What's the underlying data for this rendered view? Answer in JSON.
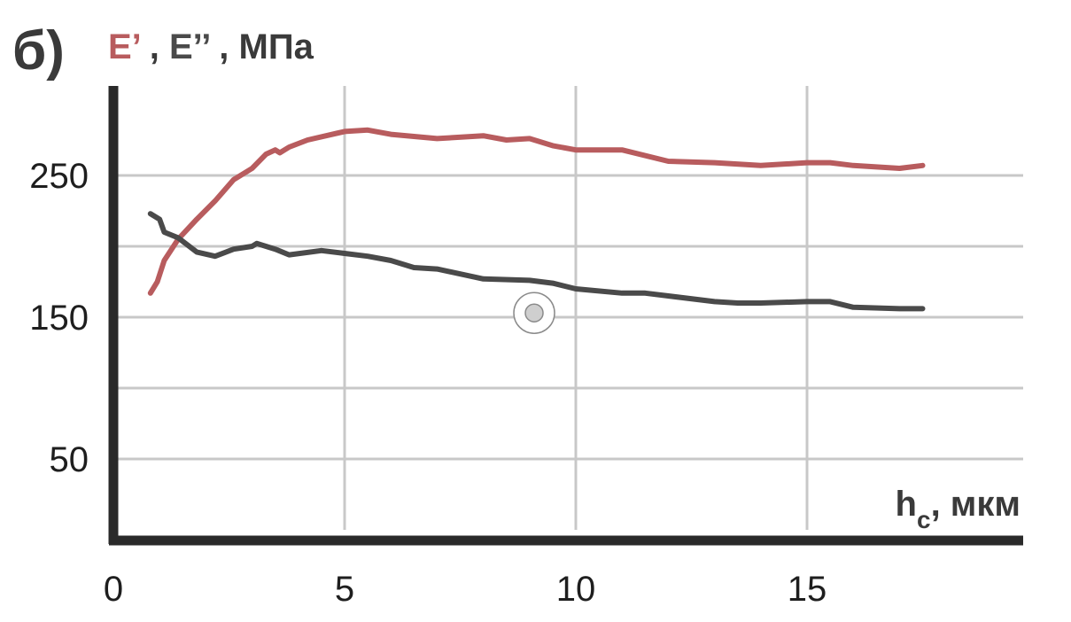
{
  "panel_label": "б)",
  "ylabel_parts": {
    "storage": "E’",
    "sep1": " , ",
    "loss": "E’’",
    "sep2": " , ",
    "unit": "МПа"
  },
  "xlabel_parts": {
    "symbol": "h",
    "subscript": "c",
    "suffix": ", мкм"
  },
  "colors": {
    "storage": "#b85c5e",
    "loss": "#4a4a4a",
    "axis": "#2a2a2a",
    "grid": "#c8c8c8",
    "marker_fill": "#cfcfcf",
    "marker_ring": "#8a8a8a"
  },
  "chart_data": {
    "type": "line",
    "xlabel": "h_c, мкм",
    "ylabel": "E’ , E’’ , МПа",
    "xlim": [
      0,
      19.5
    ],
    "ylim": [
      -7,
      310
    ],
    "x_ticks": [
      0,
      5,
      10,
      15
    ],
    "x_tick_labels": [
      "0",
      "5",
      "10",
      "15"
    ],
    "x_grid": [
      5,
      10,
      15
    ],
    "y_grid": [
      50,
      100,
      150,
      200,
      250
    ],
    "y_tick_labels": [
      {
        "value": 250,
        "label": "250"
      },
      {
        "value": 150,
        "label": "150"
      },
      {
        "value": 50,
        "label": "50"
      }
    ],
    "grid": true,
    "series": [
      {
        "key": "storage",
        "x": [
          0.8,
          0.95,
          1.1,
          1.4,
          1.8,
          2.2,
          2.6,
          3.0,
          3.3,
          3.5,
          3.6,
          3.8,
          4.2,
          5.0,
          5.5,
          6.0,
          7.0,
          8.0,
          8.5,
          9.0,
          9.5,
          10.0,
          10.5,
          11.0,
          12.0,
          13.0,
          14.0,
          15.0,
          15.5,
          16.0,
          17.0,
          17.5
        ],
        "y": [
          167,
          175,
          190,
          205,
          219,
          232,
          247,
          255,
          265,
          268,
          266,
          270,
          275,
          281,
          282,
          279,
          276,
          278,
          275,
          276,
          271,
          268,
          268,
          268,
          260,
          259,
          257,
          259,
          259,
          257,
          255,
          257
        ]
      },
      {
        "key": "loss",
        "x": [
          0.8,
          1.0,
          1.1,
          1.4,
          1.8,
          2.2,
          2.6,
          3.0,
          3.1,
          3.5,
          3.8,
          4.5,
          5.0,
          5.5,
          6.0,
          6.5,
          7.0,
          8.0,
          9.0,
          9.5,
          10.0,
          11.0,
          11.5,
          12.0,
          13.0,
          13.5,
          14.0,
          15.0,
          15.5,
          16.0,
          17.0,
          17.5
        ],
        "y": [
          223,
          219,
          210,
          206,
          196,
          193,
          198,
          200,
          202,
          198,
          194,
          197,
          195,
          193,
          190,
          185,
          184,
          177,
          176,
          174,
          170,
          167,
          167,
          165,
          161,
          160,
          160,
          161,
          161,
          157,
          156,
          156
        ]
      }
    ],
    "marker": {
      "x": 9.1,
      "y": 153
    }
  }
}
